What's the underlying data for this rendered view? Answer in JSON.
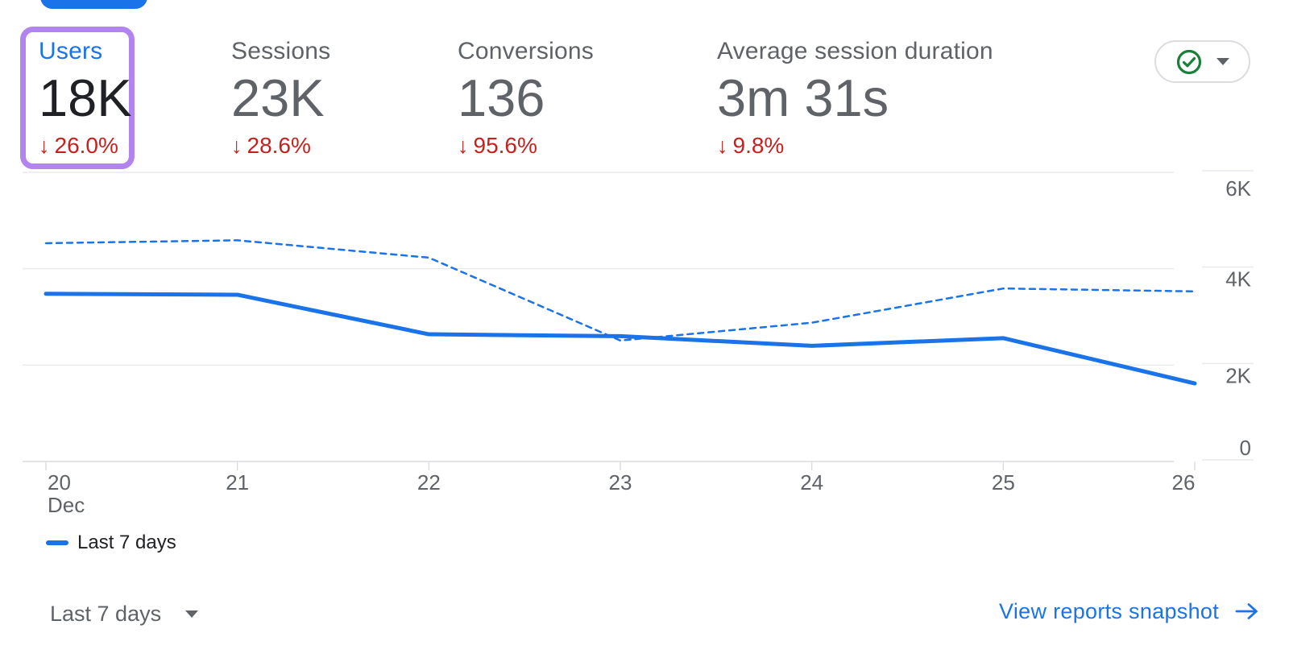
{
  "colors": {
    "accent_blue": "#1a73e8",
    "negative_red": "#c5221f",
    "text_dark": "#202124",
    "text_gray": "#5f6368",
    "gridline_gray": "#e8eaed",
    "axis_gray": "#dadce0",
    "highlight_purple": "#b184f0",
    "success_green": "#188038"
  },
  "icons": {
    "down_arrow": "↓"
  },
  "metrics": [
    {
      "label": "Users",
      "value": "18K",
      "delta": "26.0%",
      "trend": "down",
      "selected": true,
      "highlighted": true
    },
    {
      "label": "Sessions",
      "value": "23K",
      "delta": "28.6%",
      "trend": "down",
      "selected": false
    },
    {
      "label": "Conversions",
      "value": "136",
      "delta": "95.6%",
      "trend": "down",
      "selected": false
    },
    {
      "label": "Average session duration",
      "value": "3m 31s",
      "delta": "9.8%",
      "trend": "down",
      "selected": false
    }
  ],
  "status_control": {
    "icon": "check-circle",
    "state": "ok",
    "has_dropdown": true
  },
  "chart_data": {
    "type": "line",
    "x_categories": [
      "20",
      "21",
      "22",
      "23",
      "24",
      "25",
      "26"
    ],
    "x_month_label": "Dec",
    "ylim": [
      0,
      6000
    ],
    "y_ticks": [
      {
        "value": 0,
        "label": "0"
      },
      {
        "value": 2000,
        "label": "2K"
      },
      {
        "value": 4000,
        "label": "4K"
      },
      {
        "value": 6000,
        "label": "6K"
      }
    ],
    "y_axis_side": "right",
    "grid": true,
    "series": [
      {
        "name": "Last 7 days",
        "style": "solid",
        "color": "#1a73e8",
        "values": [
          3480,
          3460,
          2640,
          2600,
          2400,
          2560,
          1620
        ]
      },
      {
        "name": "unlabeled-dashed-comparison",
        "style": "dashed",
        "color": "#1a73e8",
        "values": [
          4530,
          4590,
          4230,
          2510,
          2880,
          3590,
          3530
        ]
      }
    ],
    "legend": [
      {
        "label": "Last 7 days",
        "swatch": "solid-line"
      }
    ],
    "legend_position": "bottom-left"
  },
  "footer": {
    "date_range_label": "Last 7 days",
    "view_reports_label": "View reports snapshot"
  }
}
